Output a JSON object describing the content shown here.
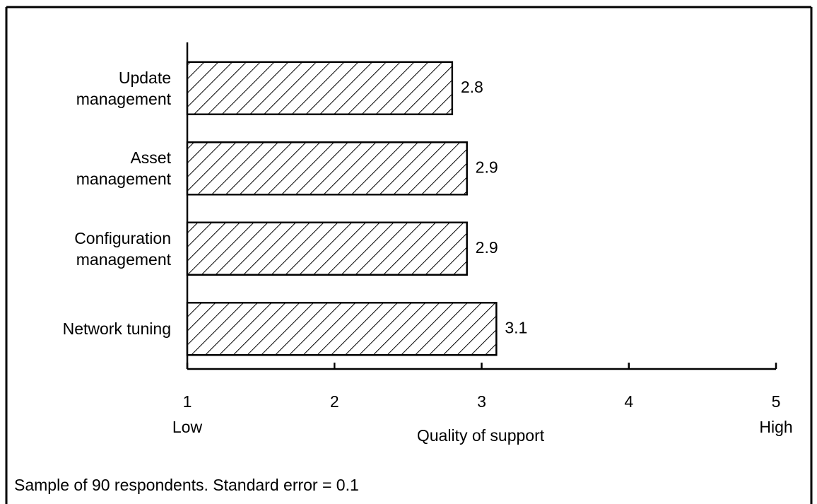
{
  "chart_data": {
    "type": "barh",
    "categories": [
      "Update\nmanagement",
      "Asset\nmanagement",
      "Configuration\nmanagement",
      "Network tuning"
    ],
    "values": [
      2.8,
      2.9,
      2.9,
      3.1
    ],
    "xlim": [
      1,
      5
    ],
    "xticks": [
      1,
      2,
      3,
      4,
      5
    ],
    "low_label": "Low",
    "high_label": "High",
    "xlabel": "Quality of support",
    "note": "Sample of 90 respondents. Standard error = 0.1",
    "color": "#000000",
    "hatch": "diagonal"
  }
}
